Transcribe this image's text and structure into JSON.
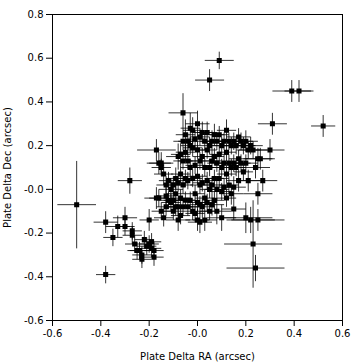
{
  "chart_data": {
    "type": "scatter",
    "xlabel": "Plate Delta RA (arcsec)",
    "ylabel": "Plate Delta Dec (arcsec)",
    "xlim": [
      -0.6,
      0.6
    ],
    "ylim": [
      -0.6,
      0.8
    ],
    "xticks": [
      -0.6,
      -0.4,
      -0.2,
      {
        "value": 0,
        "label": "-0.0"
      },
      0.2,
      0.4,
      0.6
    ],
    "yticks": [
      -0.6,
      -0.4,
      -0.2,
      {
        "value": 0,
        "label": "-0.0"
      },
      0.2,
      0.4,
      0.6,
      0.8
    ],
    "color": "black",
    "marker": "square",
    "grid": false,
    "x": [
      -0.5,
      -0.38,
      -0.38,
      -0.35,
      -0.33,
      -0.3,
      -0.3,
      -0.28,
      -0.27,
      -0.27,
      -0.26,
      -0.25,
      -0.24,
      -0.23,
      -0.23,
      -0.22,
      -0.21,
      -0.2,
      -0.2,
      -0.19,
      -0.19,
      -0.18,
      -0.18,
      -0.17,
      -0.17,
      -0.16,
      -0.16,
      -0.15,
      -0.15,
      -0.15,
      -0.14,
      -0.14,
      -0.13,
      -0.13,
      -0.13,
      -0.12,
      -0.12,
      -0.11,
      -0.11,
      -0.1,
      -0.1,
      -0.1,
      -0.09,
      -0.09,
      -0.09,
      -0.08,
      -0.08,
      -0.08,
      -0.08,
      -0.07,
      -0.07,
      -0.07,
      -0.07,
      -0.06,
      -0.06,
      -0.06,
      -0.06,
      -0.05,
      -0.05,
      -0.05,
      -0.05,
      -0.04,
      -0.04,
      -0.04,
      -0.04,
      -0.03,
      -0.03,
      -0.03,
      -0.03,
      -0.02,
      -0.02,
      -0.02,
      -0.02,
      -0.01,
      -0.01,
      -0.01,
      -0.01,
      0,
      0,
      0,
      0,
      0,
      0.01,
      0.01,
      0.01,
      0.01,
      0.01,
      0.02,
      0.02,
      0.02,
      0.02,
      0.03,
      0.03,
      0.03,
      0.03,
      0.04,
      0.04,
      0.04,
      0.04,
      0.05,
      0.05,
      0.05,
      0.05,
      0.06,
      0.06,
      0.06,
      0.06,
      0.07,
      0.07,
      0.07,
      0.07,
      0.08,
      0.08,
      0.08,
      0.08,
      0.09,
      0.09,
      0.09,
      0.1,
      0.1,
      0.1,
      0.1,
      0.11,
      0.11,
      0.11,
      0.12,
      0.12,
      0.12,
      0.12,
      0.13,
      0.13,
      0.13,
      0.14,
      0.14,
      0.14,
      0.15,
      0.15,
      0.15,
      0.15,
      0.16,
      0.16,
      0.17,
      0.17,
      0.17,
      0.18,
      0.18,
      0.19,
      0.19,
      0.2,
      0.2,
      0.2,
      0.21,
      0.21,
      0.22,
      0.22,
      0.23,
      0.23,
      0.24,
      0.25,
      0.25,
      0.26,
      0.27,
      0.3,
      0.31,
      0.39,
      0.42,
      0.52,
      0.05,
      0.09,
      -0.06,
      0.25,
      0.24
    ],
    "values": [
      -0.07,
      -0.39,
      -0.15,
      -0.22,
      -0.17,
      -0.17,
      -0.13,
      0.04,
      -0.21,
      -0.19,
      -0.25,
      -0.28,
      -0.28,
      -0.32,
      -0.3,
      -0.23,
      -0.26,
      -0.14,
      -0.25,
      -0.24,
      -0.27,
      -0.31,
      -0.28,
      0.18,
      -0.04,
      0.12,
      -0.04,
      0.12,
      0.1,
      -0.1,
      0.07,
      -0.13,
      0.02,
      -0.08,
      -0.03,
      0.04,
      -0.05,
      -0.06,
      0,
      0.02,
      -0.05,
      -0.1,
      0.05,
      -0.02,
      -0.08,
      0.15,
      0.03,
      -0.08,
      -0.14,
      0.16,
      0.07,
      -0.04,
      -0.12,
      0.22,
      0.13,
      0.02,
      -0.08,
      0.25,
      0.17,
      0.05,
      -0.05,
      0.22,
      0.13,
      0.04,
      -0.08,
      0.28,
      0.2,
      0.1,
      -0.05,
      0.27,
      0.19,
      0.05,
      -0.1,
      0.23,
      0.11,
      -0.02,
      -0.11,
      0.3,
      0.18,
      0.06,
      -0.06,
      -0.14,
      0.24,
      0.13,
      0.02,
      -0.07,
      -0.15,
      0.26,
      0.15,
      0.03,
      -0.08,
      0.22,
      0.1,
      -0.04,
      -0.14,
      0.26,
      0.18,
      0.04,
      -0.06,
      0.2,
      0.1,
      0,
      -0.1,
      0.22,
      0.13,
      0.02,
      -0.07,
      0.25,
      0.15,
      0.05,
      -0.05,
      0.22,
      0.12,
      0,
      -0.1,
      0.25,
      0.16,
      0.05,
      0.2,
      0.1,
      -0.01,
      -0.13,
      0.22,
      0.12,
      0.01,
      0.27,
      0.17,
      0.07,
      -0.04,
      0.22,
      0.12,
      0.02,
      0.2,
      0.1,
      -0.02,
      0.22,
      0.12,
      0.01,
      -0.09,
      0.2,
      0.1,
      0.24,
      0.14,
      0.04,
      0.22,
      0.12,
      0.2,
      0.08,
      0.22,
      0.12,
      -0.13,
      0.18,
      0.04,
      0.2,
      -0.14,
      0.18,
      -0.25,
      0.1,
      0.14,
      -0.02,
      0.14,
      0.04,
      0.18,
      0.3,
      0.45,
      0.45,
      0.29,
      0.5,
      0.59,
      0.35,
      -0.14,
      -0.36
    ],
    "xerr": [
      0.08,
      0.04,
      0.05,
      0.04,
      0.05,
      0.04,
      0.05,
      0.05,
      0.04,
      0.04,
      0.04,
      0.04,
      0.04,
      0.04,
      0.04,
      0.04,
      0.04,
      0.04,
      0.04,
      0.04,
      0.04,
      0.04,
      0.04,
      0.08,
      0.05,
      0.05,
      0.04,
      0.05,
      0.04,
      0.04,
      0.04,
      0.04,
      0.04,
      0.04,
      0.04,
      0.04,
      0.04,
      0.04,
      0.05,
      0.04,
      0.04,
      0.04,
      0.04,
      0.04,
      0.04,
      0.05,
      0.04,
      0.04,
      0.05,
      0.04,
      0.04,
      0.04,
      0.04,
      0.04,
      0.04,
      0.04,
      0.04,
      0.04,
      0.04,
      0.04,
      0.04,
      0.04,
      0.04,
      0.04,
      0.04,
      0.04,
      0.04,
      0.04,
      0.04,
      0.04,
      0.04,
      0.04,
      0.04,
      0.04,
      0.04,
      0.04,
      0.04,
      0.05,
      0.04,
      0.04,
      0.04,
      0.05,
      0.04,
      0.04,
      0.04,
      0.04,
      0.05,
      0.04,
      0.04,
      0.04,
      0.05,
      0.04,
      0.04,
      0.04,
      0.05,
      0.04,
      0.04,
      0.04,
      0.04,
      0.04,
      0.04,
      0.04,
      0.04,
      0.05,
      0.04,
      0.04,
      0.05,
      0.04,
      0.04,
      0.04,
      0.04,
      0.05,
      0.04,
      0.05,
      0.06,
      0.04,
      0.04,
      0.04,
      0.05,
      0.04,
      0.04,
      0.06,
      0.05,
      0.04,
      0.04,
      0.04,
      0.04,
      0.04,
      0.04,
      0.05,
      0.04,
      0.04,
      0.04,
      0.04,
      0.05,
      0.05,
      0.04,
      0.05,
      0.05,
      0.05,
      0.04,
      0.05,
      0.04,
      0.05,
      0.05,
      0.04,
      0.05,
      0.04,
      0.05,
      0.05,
      0.11,
      0.05,
      0.05,
      0.05,
      0.1,
      0.06,
      0.12,
      0.06,
      0.06,
      0.06,
      0.06,
      0.06,
      0.06,
      0.06,
      0.08,
      0.06,
      0.05,
      0.06,
      0.06,
      0.06,
      0.11,
      0.12
    ],
    "yerr": [
      0.2,
      0.04,
      0.05,
      0.04,
      0.05,
      0.04,
      0.05,
      0.06,
      0.04,
      0.04,
      0.04,
      0.04,
      0.04,
      0.04,
      0.04,
      0.04,
      0.04,
      0.05,
      0.04,
      0.04,
      0.04,
      0.04,
      0.04,
      0.05,
      0.05,
      0.05,
      0.04,
      0.05,
      0.04,
      0.04,
      0.05,
      0.04,
      0.04,
      0.04,
      0.04,
      0.04,
      0.04,
      0.04,
      0.05,
      0.04,
      0.04,
      0.04,
      0.05,
      0.04,
      0.04,
      0.06,
      0.04,
      0.04,
      0.05,
      0.05,
      0.04,
      0.04,
      0.04,
      0.04,
      0.04,
      0.04,
      0.04,
      0.07,
      0.04,
      0.04,
      0.04,
      0.04,
      0.04,
      0.04,
      0.04,
      0.07,
      0.04,
      0.04,
      0.04,
      0.06,
      0.04,
      0.04,
      0.04,
      0.04,
      0.04,
      0.04,
      0.04,
      0.06,
      0.04,
      0.04,
      0.04,
      0.05,
      0.04,
      0.04,
      0.04,
      0.04,
      0.05,
      0.05,
      0.04,
      0.04,
      0.05,
      0.04,
      0.04,
      0.04,
      0.05,
      0.05,
      0.04,
      0.04,
      0.04,
      0.04,
      0.04,
      0.04,
      0.04,
      0.05,
      0.04,
      0.04,
      0.05,
      0.05,
      0.04,
      0.04,
      0.04,
      0.04,
      0.04,
      0.05,
      0.06,
      0.04,
      0.04,
      0.04,
      0.04,
      0.04,
      0.04,
      0.06,
      0.04,
      0.04,
      0.04,
      0.05,
      0.04,
      0.04,
      0.04,
      0.04,
      0.04,
      0.04,
      0.04,
      0.04,
      0.05,
      0.04,
      0.04,
      0.05,
      0.05,
      0.04,
      0.04,
      0.04,
      0.04,
      0.05,
      0.04,
      0.04,
      0.04,
      0.04,
      0.05,
      0.04,
      0.07,
      0.04,
      0.05,
      0.04,
      0.06,
      0.04,
      0.2,
      0.05,
      0.05,
      0.05,
      0.05,
      0.05,
      0.05,
      0.05,
      0.05,
      0.05,
      0.05,
      0.05,
      0.04,
      0.09,
      0.05,
      0.06
    ]
  }
}
